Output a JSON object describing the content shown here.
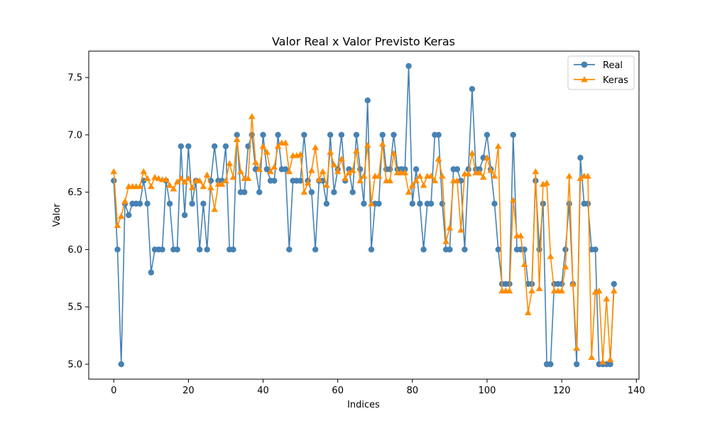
{
  "chart_data": {
    "type": "line",
    "title": "Valor Real x Valor Previsto Keras",
    "xlabel": "Indices",
    "ylabel": "Valor",
    "xlim": [
      -6.7,
      140.7
    ],
    "ylim": [
      4.87,
      7.73
    ],
    "xticks": [
      0,
      20,
      40,
      60,
      80,
      100,
      120,
      140
    ],
    "yticks": [
      5.0,
      5.5,
      6.0,
      6.5,
      7.0,
      7.5
    ],
    "ytick_labels": [
      "5.0",
      "5.5",
      "6.0",
      "6.5",
      "7.0",
      "7.5"
    ],
    "grid": false,
    "legend": "top-right",
    "series": [
      {
        "name": "Real",
        "color": "#4682b4",
        "marker": "circle",
        "values": [
          6.6,
          6.0,
          5.0,
          6.4,
          6.3,
          6.4,
          6.4,
          6.4,
          6.6,
          6.4,
          5.8,
          6.0,
          6.0,
          6.0,
          6.6,
          6.4,
          6.0,
          6.0,
          6.9,
          6.3,
          6.9,
          6.4,
          6.6,
          6.0,
          6.4,
          6.0,
          6.6,
          6.9,
          6.6,
          6.6,
          6.9,
          6.0,
          6.0,
          7.0,
          6.5,
          6.5,
          6.9,
          7.0,
          6.7,
          6.5,
          7.0,
          6.7,
          6.6,
          6.6,
          7.0,
          6.7,
          6.7,
          6.0,
          6.6,
          6.6,
          6.6,
          7.0,
          6.6,
          6.5,
          6.0,
          6.6,
          6.6,
          6.4,
          7.0,
          6.5,
          6.7,
          7.0,
          6.6,
          6.7,
          6.5,
          7.0,
          6.7,
          6.4,
          7.3,
          6.0,
          6.4,
          6.4,
          7.0,
          6.7,
          6.7,
          7.0,
          6.7,
          6.7,
          6.7,
          7.6,
          6.4,
          6.7,
          6.4,
          6.0,
          6.4,
          6.4,
          7.0,
          7.0,
          6.4,
          6.0,
          6.0,
          6.7,
          6.7,
          6.6,
          6.0,
          6.7,
          7.4,
          6.7,
          6.7,
          6.8,
          7.0,
          6.7,
          6.4,
          6.0,
          5.7,
          5.7,
          5.7,
          7.0,
          6.0,
          6.0,
          6.0,
          5.7,
          5.7,
          6.6,
          6.0,
          6.4,
          5.0,
          5.0,
          5.7,
          5.7,
          5.7,
          6.0,
          6.4,
          5.7,
          5.0,
          6.8,
          6.4,
          6.4,
          6.0,
          6.0,
          5.0,
          5.0,
          5.0,
          5.0,
          5.7
        ]
      },
      {
        "name": "Keras",
        "color": "#ff8c00",
        "marker": "triangle",
        "values": [
          6.68,
          6.21,
          6.29,
          6.42,
          6.55,
          6.55,
          6.55,
          6.55,
          6.68,
          6.62,
          6.55,
          6.63,
          6.62,
          6.61,
          6.61,
          6.56,
          6.53,
          6.59,
          6.62,
          6.59,
          6.62,
          6.54,
          6.6,
          6.6,
          6.55,
          6.65,
          6.54,
          6.35,
          6.57,
          6.57,
          6.6,
          6.75,
          6.63,
          6.96,
          6.68,
          6.62,
          6.62,
          7.16,
          6.76,
          6.7,
          6.9,
          6.85,
          6.68,
          6.72,
          6.9,
          6.93,
          6.93,
          6.68,
          6.82,
          6.82,
          6.83,
          6.5,
          6.58,
          6.69,
          6.89,
          6.61,
          6.68,
          6.56,
          6.85,
          6.74,
          6.68,
          6.79,
          6.62,
          6.67,
          6.69,
          6.86,
          6.6,
          6.64,
          6.91,
          6.4,
          6.64,
          6.64,
          6.92,
          6.6,
          6.6,
          6.84,
          6.67,
          6.67,
          6.67,
          6.5,
          6.56,
          6.6,
          6.64,
          6.56,
          6.64,
          6.64,
          6.6,
          6.79,
          6.64,
          6.07,
          6.19,
          6.6,
          6.6,
          6.17,
          6.66,
          6.66,
          6.84,
          6.67,
          6.67,
          6.63,
          6.8,
          6.69,
          6.64,
          6.9,
          5.64,
          5.64,
          5.64,
          6.43,
          6.12,
          6.12,
          5.87,
          5.45,
          5.64,
          6.68,
          5.66,
          6.57,
          6.58,
          5.94,
          5.64,
          5.64,
          5.64,
          5.85,
          6.64,
          5.7,
          5.14,
          6.62,
          6.64,
          6.64,
          5.06,
          5.63,
          5.64,
          5.02,
          5.57,
          5.04,
          5.64
        ]
      }
    ]
  }
}
